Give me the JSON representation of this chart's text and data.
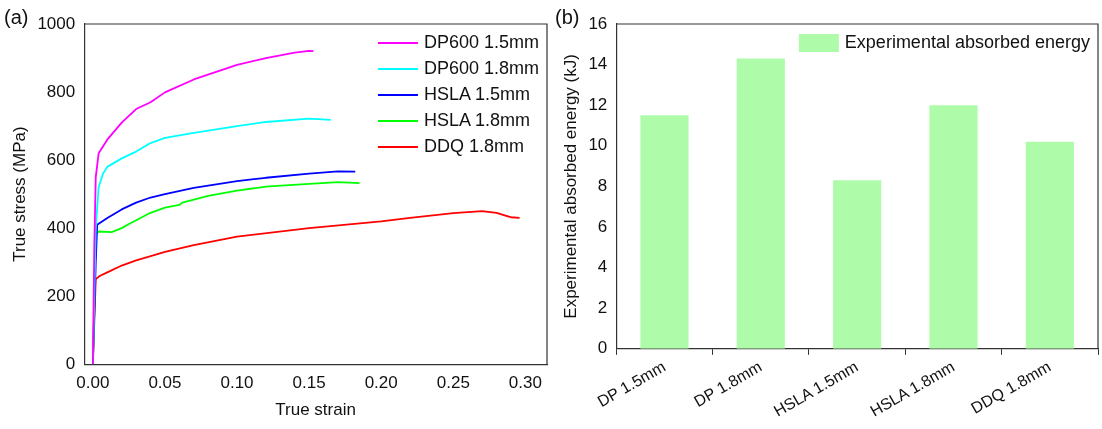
{
  "chart_data": [
    {
      "type": "line",
      "title": "(a)",
      "xlabel": "True strain",
      "ylabel": "True stress (MPa)",
      "xlim": [
        -0.006,
        0.315
      ],
      "ylim": [
        0,
        1000
      ],
      "xticks": [
        {
          "value": 0,
          "label": "0.00"
        },
        {
          "value": 0.05,
          "label": "0.05"
        },
        {
          "value": 0.1,
          "label": "0.10"
        },
        {
          "value": 0.15,
          "label": "0.15"
        },
        {
          "value": 0.2,
          "label": "0.20"
        },
        {
          "value": 0.25,
          "label": "0.25"
        },
        {
          "value": 0.3,
          "label": "0.30"
        }
      ],
      "yticks": [
        0,
        200,
        400,
        600,
        800,
        1000
      ],
      "grid": false,
      "legend": "top right",
      "marker": "none",
      "line_style": "solid",
      "series": [
        {
          "name": "DP600 1.5mm",
          "color": "#ff00ff",
          "x": [
            0,
            0.001,
            0.002,
            0.004,
            0.01,
            0.02,
            0.03,
            0.04,
            0.05,
            0.07,
            0.1,
            0.12,
            0.14,
            0.15,
            0.153
          ],
          "values": [
            0,
            350,
            550,
            620,
            660,
            710,
            750,
            770,
            799,
            837,
            880,
            900,
            916,
            921,
            920
          ]
        },
        {
          "name": "DP600 1.8mm",
          "color": "#00ffff",
          "x": [
            0,
            0.002,
            0.004,
            0.007,
            0.01,
            0.02,
            0.03,
            0.04,
            0.05,
            0.07,
            0.1,
            0.12,
            0.15,
            0.165
          ],
          "values": [
            0,
            400,
            520,
            560,
            580,
            605,
            625,
            650,
            665,
            680,
            700,
            712,
            722,
            718
          ]
        },
        {
          "name": "HSLA 1.5mm",
          "color": "#0000ff",
          "x": [
            0,
            0.001,
            0.002,
            0.003,
            0.01,
            0.02,
            0.03,
            0.04,
            0.05,
            0.07,
            0.08,
            0.1,
            0.12,
            0.15,
            0.17,
            0.182
          ],
          "values": [
            0,
            150,
            300,
            410,
            430,
            455,
            475,
            490,
            500,
            518,
            525,
            538,
            548,
            560,
            567,
            566
          ]
        },
        {
          "name": "HSLA 1.8mm",
          "color": "#00ff00",
          "x": [
            0,
            0.002,
            0.004,
            0.013,
            0.02,
            0.025,
            0.04,
            0.05,
            0.06,
            0.062,
            0.08,
            0.1,
            0.12,
            0.15,
            0.17,
            0.185
          ],
          "values": [
            0,
            380,
            390,
            388,
            400,
            412,
            445,
            460,
            468,
            475,
            495,
            510,
            522,
            530,
            535,
            532
          ]
        },
        {
          "name": "DDQ 1.8mm",
          "color": "#ff0000",
          "x": [
            0,
            0.002,
            0.005,
            0.01,
            0.02,
            0.03,
            0.05,
            0.07,
            0.1,
            0.15,
            0.2,
            0.22,
            0.25,
            0.27,
            0.28,
            0.29,
            0.296
          ],
          "values": [
            0,
            250,
            260,
            270,
            290,
            305,
            330,
            350,
            375,
            400,
            420,
            430,
            444,
            450,
            445,
            432,
            430
          ]
        }
      ]
    },
    {
      "type": "bar",
      "title": "(b)",
      "ylabel": "Experimental absorbed energy (kJ)",
      "categories": [
        "DP 1.5mm",
        "DP 1.8mm",
        "HSLA 1.5mm",
        "HSLA 1.8mm",
        "DDQ 1.8mm"
      ],
      "ylim": [
        0,
        16
      ],
      "yticks": [
        0,
        2,
        4,
        6,
        8,
        10,
        12,
        14,
        16
      ],
      "grid": false,
      "legend": "top right",
      "series": [
        {
          "name": "Experimental absorbed energy",
          "color": "#aefcaa",
          "values": [
            11.5,
            14.3,
            8.3,
            12.0,
            10.2
          ]
        }
      ]
    }
  ]
}
